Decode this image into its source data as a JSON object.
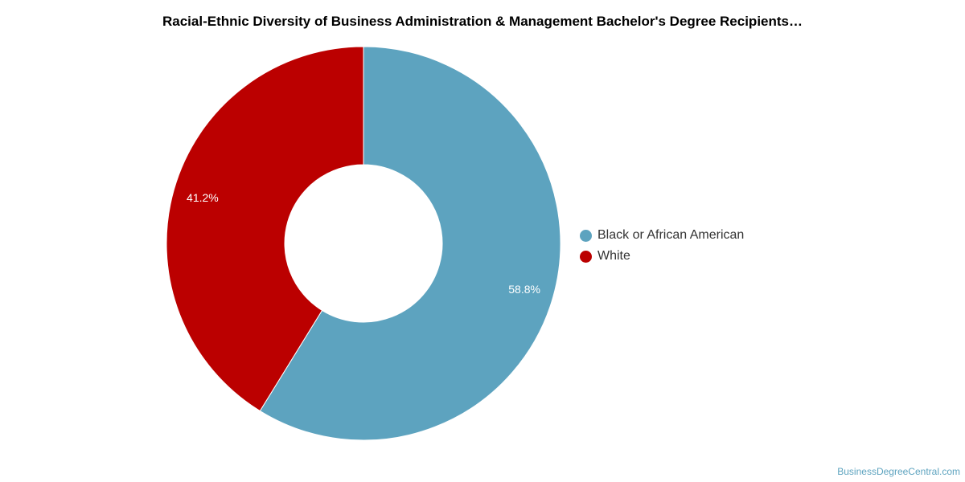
{
  "chart_data": {
    "type": "pie",
    "donut": true,
    "title": "Racial-Ethnic Diversity of Business Administration & Management Bachelor's Degree Recipients…",
    "categories": [
      "Black or African American",
      "White"
    ],
    "values": [
      58.8,
      41.2
    ],
    "value_labels": [
      "58.8%",
      "41.2%"
    ],
    "colors": [
      "#5da3bf",
      "#bb0000"
    ],
    "legend_position": "right"
  },
  "watermark": "BusinessDegreeCentral.com"
}
